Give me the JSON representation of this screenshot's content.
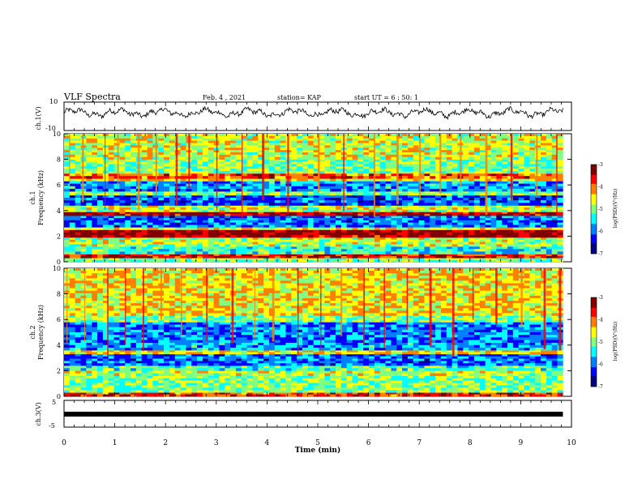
{
  "header": {
    "title": "VLF Spectra",
    "date": "Feb. 4 , 2021",
    "station": "station= KAP",
    "start": "start  UT =  6 : 50: 1"
  },
  "panels": {
    "ch1_wave": {
      "ylabel": "ch.1(V)",
      "ticks": [
        "10",
        "-10"
      ]
    },
    "ch1_spec": {
      "ylabel_line1": "ch.1",
      "ylabel_line2": "Frequency (kHz)"
    },
    "ch2_spec": {
      "ylabel_line1": "ch.2",
      "ylabel_line2": "Frequency (kHz)"
    },
    "ch3_wave": {
      "ylabel": "ch.3(V)",
      "ticks": [
        "5",
        "-5"
      ]
    }
  },
  "xaxis": {
    "label": "Time (min)"
  },
  "colorbar": {
    "label": "log(PSD)(V²/Hz)"
  },
  "colors": {
    "scale": [
      "#000080",
      "#0000ff",
      "#0080ff",
      "#00ffff",
      "#80ff80",
      "#ffff00",
      "#ff8000",
      "#ff0000",
      "#800000"
    ]
  },
  "chart_data": [
    {
      "type": "line",
      "name": "ch.1 waveform",
      "ylabel": "ch.1(V)",
      "xlim": [
        0,
        10
      ],
      "ylim": [
        -10,
        10
      ],
      "x_extent": [
        0,
        9.83
      ],
      "y_mean": 2.5,
      "y_amplitude": 3
    },
    {
      "type": "heatmap",
      "ylabel": "Frequency (kHz)",
      "xlim": [
        0,
        10
      ],
      "ylim": [
        0,
        10
      ],
      "x_extent": [
        0,
        9.83
      ],
      "yticks": [
        0,
        2,
        4,
        6,
        8,
        10
      ],
      "bands_khz": [
        {
          "f0": 0.0,
          "f1": 0.3,
          "level": -5.0
        },
        {
          "f0": 0.3,
          "f1": 0.6,
          "level": -3.6
        },
        {
          "f0": 0.6,
          "f1": 1.2,
          "level": -5.3
        },
        {
          "f0": 1.2,
          "f1": 1.9,
          "level": -4.8
        },
        {
          "f0": 1.9,
          "f1": 2.1,
          "level": -3.3
        },
        {
          "f0": 2.1,
          "f1": 2.5,
          "level": -3.2
        },
        {
          "f0": 2.5,
          "f1": 2.7,
          "level": -4.6
        },
        {
          "f0": 2.7,
          "f1": 3.6,
          "level": -6.0
        },
        {
          "f0": 3.6,
          "f1": 3.9,
          "level": -3.4
        },
        {
          "f0": 3.9,
          "f1": 4.4,
          "level": -4.8
        },
        {
          "f0": 4.4,
          "f1": 5.2,
          "level": -6.1
        },
        {
          "f0": 5.2,
          "f1": 5.5,
          "level": -5.0
        },
        {
          "f0": 5.5,
          "f1": 6.3,
          "level": -5.8
        },
        {
          "f0": 6.3,
          "f1": 6.5,
          "level": -4.5
        },
        {
          "f0": 6.5,
          "f1": 6.9,
          "level": -3.9
        },
        {
          "f0": 6.9,
          "f1": 8.0,
          "level": -5.0
        },
        {
          "f0": 8.0,
          "f1": 10.0,
          "level": -4.7
        }
      ],
      "vertical_bursts_min": [
        0.1,
        0.35,
        0.8,
        1.05,
        1.45,
        1.8,
        2.2,
        2.45,
        3.0,
        3.5,
        3.9,
        4.4,
        5.0,
        5.5,
        6.1,
        6.55,
        7.0,
        7.4,
        7.8,
        8.3,
        8.8,
        9.3,
        9.7
      ]
    },
    {
      "type": "heatmap",
      "ylabel": "Frequency (kHz)",
      "xlim": [
        0,
        10
      ],
      "ylim": [
        0,
        10
      ],
      "x_extent": [
        0,
        9.83
      ],
      "yticks": [
        0,
        2,
        4,
        6,
        8,
        10
      ],
      "bands_khz": [
        {
          "f0": 0.0,
          "f1": 0.3,
          "level": -3.8
        },
        {
          "f0": 0.3,
          "f1": 1.6,
          "level": -5.0
        },
        {
          "f0": 1.6,
          "f1": 2.0,
          "level": -4.7
        },
        {
          "f0": 2.0,
          "f1": 2.4,
          "level": -5.2
        },
        {
          "f0": 2.4,
          "f1": 3.3,
          "level": -6.0
        },
        {
          "f0": 3.3,
          "f1": 3.6,
          "level": -4.5
        },
        {
          "f0": 3.6,
          "f1": 4.2,
          "level": -5.8
        },
        {
          "f0": 4.2,
          "f1": 5.8,
          "level": -5.9
        },
        {
          "f0": 5.8,
          "f1": 6.3,
          "level": -5.0
        },
        {
          "f0": 6.3,
          "f1": 10.0,
          "level": -4.5
        }
      ],
      "vertical_bursts_min": [
        0.05,
        0.4,
        0.85,
        1.2,
        1.55,
        1.9,
        2.3,
        2.8,
        3.3,
        3.75,
        4.1,
        4.6,
        5.05,
        5.45,
        5.9,
        6.3,
        6.75,
        7.2,
        7.65,
        8.05,
        8.5,
        9.0,
        9.45,
        9.75
      ]
    },
    {
      "type": "line",
      "name": "ch.3 waveform",
      "ylabel": "ch.3(V)",
      "xlim": [
        0,
        10
      ],
      "ylim": [
        -5,
        5
      ],
      "x_extent": [
        0,
        9.83
      ],
      "y_mean": 0,
      "y_amplitude": 0.6
    },
    {
      "type": "heatmap",
      "name": "colorbar",
      "clim": [
        -7,
        -3
      ],
      "ticks": [
        -3,
        -4,
        -5,
        -6,
        -7
      ],
      "colorbar_label": "log(PSD)(V²/Hz)"
    }
  ]
}
